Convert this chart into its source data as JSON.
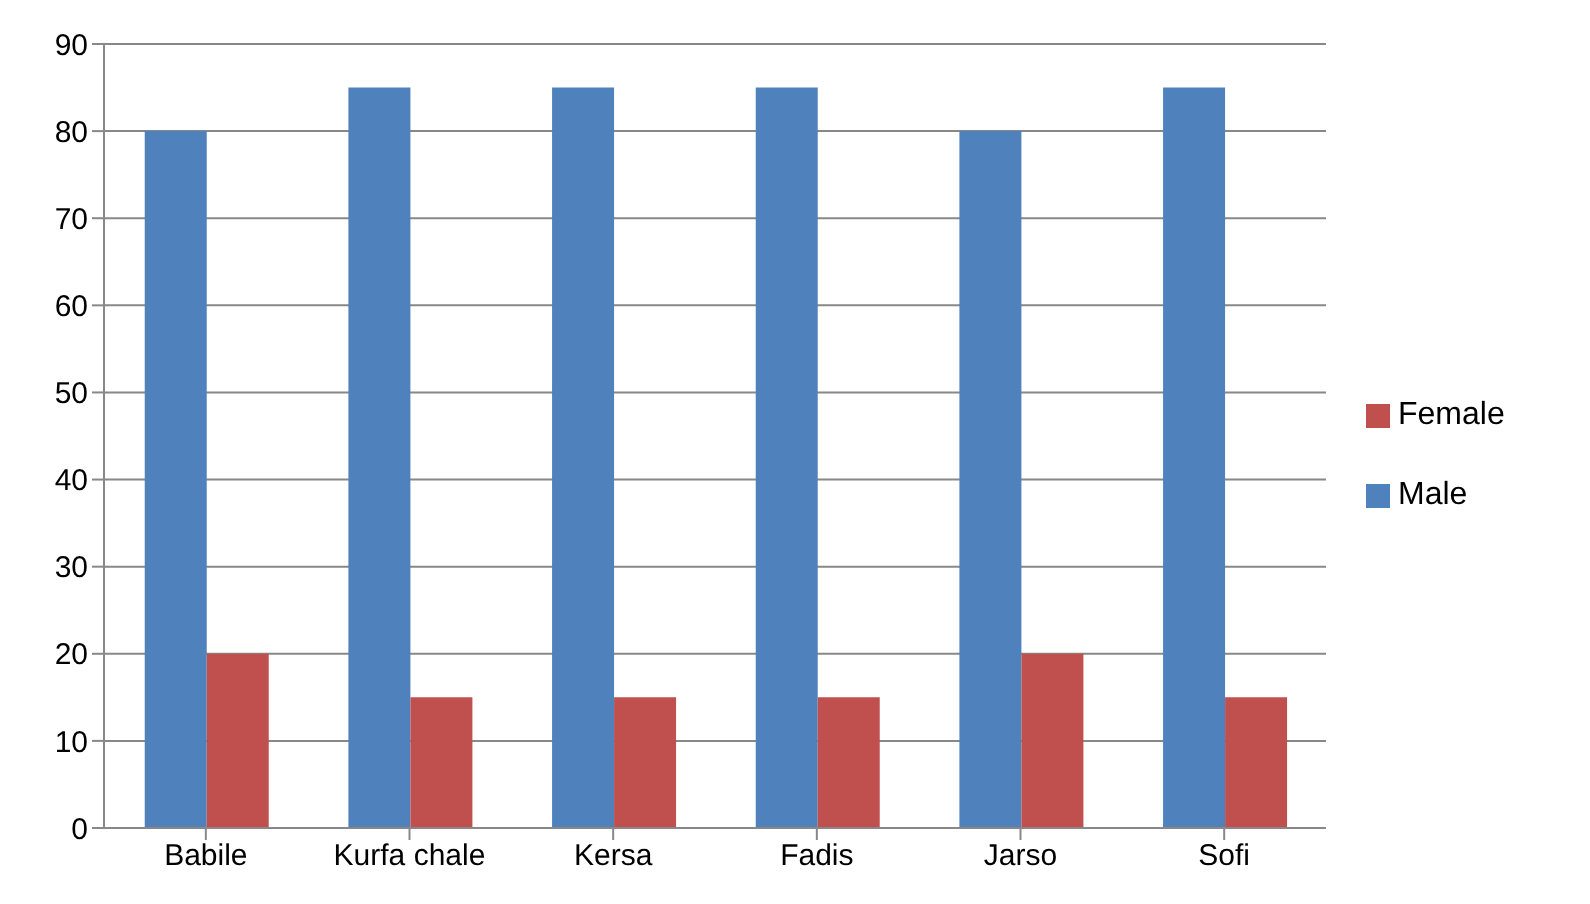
{
  "chart_data": {
    "type": "bar",
    "categories": [
      "Babile",
      "Kurfa chale",
      "Kersa",
      "Fadis",
      "Jarso",
      "Sofi"
    ],
    "series": [
      {
        "name": "Male",
        "color": "#4f81bd",
        "values": [
          80,
          85,
          85,
          85,
          80,
          85
        ]
      },
      {
        "name": "Female",
        "color": "#c0504d",
        "values": [
          20,
          15,
          15,
          15,
          20,
          15
        ]
      }
    ],
    "ylim": [
      0,
      90
    ],
    "yticks": [
      0,
      10,
      20,
      30,
      40,
      50,
      60,
      70,
      80,
      90
    ],
    "grid": "y",
    "legend": "right"
  }
}
